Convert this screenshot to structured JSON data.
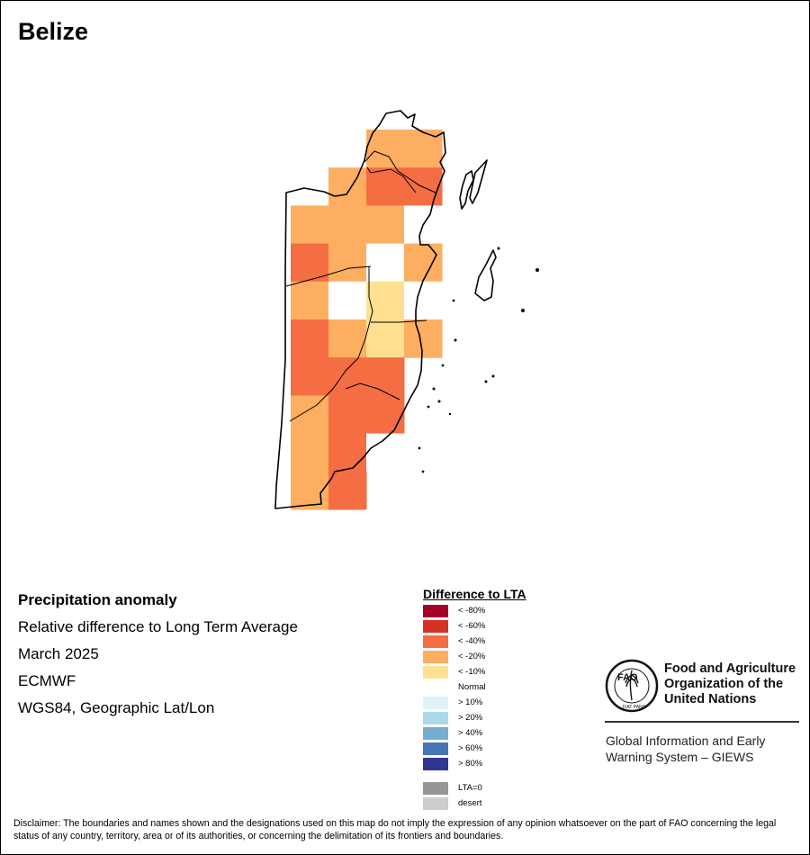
{
  "map": {
    "title": "Belize"
  },
  "info": {
    "heading": "Precipitation anomaly",
    "subtitle": "Relative difference to Long Term Average",
    "period": "March 2025",
    "source": "ECMWF",
    "projection": "WGS84, Geographic Lat/Lon"
  },
  "legend": {
    "title": "Difference to LTA",
    "items": [
      {
        "label": "< -80%",
        "color": "#a50026"
      },
      {
        "label": "< -60%",
        "color": "#d73027"
      },
      {
        "label": "< -40%",
        "color": "#f46d43"
      },
      {
        "label": "< -20%",
        "color": "#fdae61"
      },
      {
        "label": "< -10%",
        "color": "#fee090"
      },
      {
        "label": "Normal",
        "color": "#ffffff"
      },
      {
        "label": "> 10%",
        "color": "#e0f3f8"
      },
      {
        "label": "> 20%",
        "color": "#abd9e9"
      },
      {
        "label": "> 40%",
        "color": "#74add1"
      },
      {
        "label": "> 60%",
        "color": "#4575b4"
      },
      {
        "label": "> 80%",
        "color": "#313695"
      }
    ],
    "extra": [
      {
        "label": "LTA=0",
        "color": "#969696"
      },
      {
        "label": "desert",
        "color": "#cccccc"
      }
    ]
  },
  "organization": {
    "name_line1": "Food and Agriculture",
    "name_line2": "Organization of the",
    "name_line3": "United Nations",
    "logo_text": "FAO",
    "logo_motto": "FIAT PANIS",
    "system_line1": "Global Information and Early",
    "system_line2": "Warning System – GIEWS"
  },
  "disclaimer": "Disclaimer: The boundaries and names shown and the designations used on this map do not imply the expression of any opinion whatsoever on the part of FAO concerning the legal status of any country, territory, area or of its authorities, or concerning the delimitation of its frontiers and boundaries.",
  "anomaly_grid": [
    {
      "col": 2,
      "row": 0,
      "class": "< -20%"
    },
    {
      "col": 3,
      "row": 0,
      "class": "< -20%"
    },
    {
      "col": 1,
      "row": 1,
      "class": "< -20%"
    },
    {
      "col": 2,
      "row": 1,
      "class": "< -40%"
    },
    {
      "col": 3,
      "row": 1,
      "class": "< -40%"
    },
    {
      "col": 0,
      "row": 2,
      "class": "< -20%"
    },
    {
      "col": 1,
      "row": 2,
      "class": "< -20%"
    },
    {
      "col": 2,
      "row": 2,
      "class": "< -20%"
    },
    {
      "col": 3,
      "row": 2,
      "class": "Normal"
    },
    {
      "col": 0,
      "row": 3,
      "class": "< -40%"
    },
    {
      "col": 1,
      "row": 3,
      "class": "< -20%"
    },
    {
      "col": 2,
      "row": 3,
      "class": "Normal"
    },
    {
      "col": 3,
      "row": 3,
      "class": "< -20%"
    },
    {
      "col": 0,
      "row": 4,
      "class": "< -20%"
    },
    {
      "col": 1,
      "row": 4,
      "class": "Normal"
    },
    {
      "col": 2,
      "row": 4,
      "class": "< -10%"
    },
    {
      "col": 3,
      "row": 4,
      "class": "Normal"
    },
    {
      "col": 0,
      "row": 5,
      "class": "< -40%"
    },
    {
      "col": 1,
      "row": 5,
      "class": "< -20%"
    },
    {
      "col": 2,
      "row": 5,
      "class": "< -10%"
    },
    {
      "col": 3,
      "row": 5,
      "class": "< -20%"
    },
    {
      "col": 0,
      "row": 6,
      "class": "< -40%"
    },
    {
      "col": 1,
      "row": 6,
      "class": "< -40%"
    },
    {
      "col": 2,
      "row": 6,
      "class": "< -40%"
    },
    {
      "col": 0,
      "row": 7,
      "class": "< -20%"
    },
    {
      "col": 1,
      "row": 7,
      "class": "< -40%"
    },
    {
      "col": 2,
      "row": 7,
      "class": "< -40%"
    },
    {
      "col": 0,
      "row": 8,
      "class": "< -20%"
    },
    {
      "col": 1,
      "row": 8,
      "class": "< -40%"
    },
    {
      "col": 2,
      "row": 8,
      "class": "Normal"
    },
    {
      "col": 0,
      "row": 9,
      "class": "< -20%"
    },
    {
      "col": 1,
      "row": 9,
      "class": "< -40%"
    }
  ]
}
